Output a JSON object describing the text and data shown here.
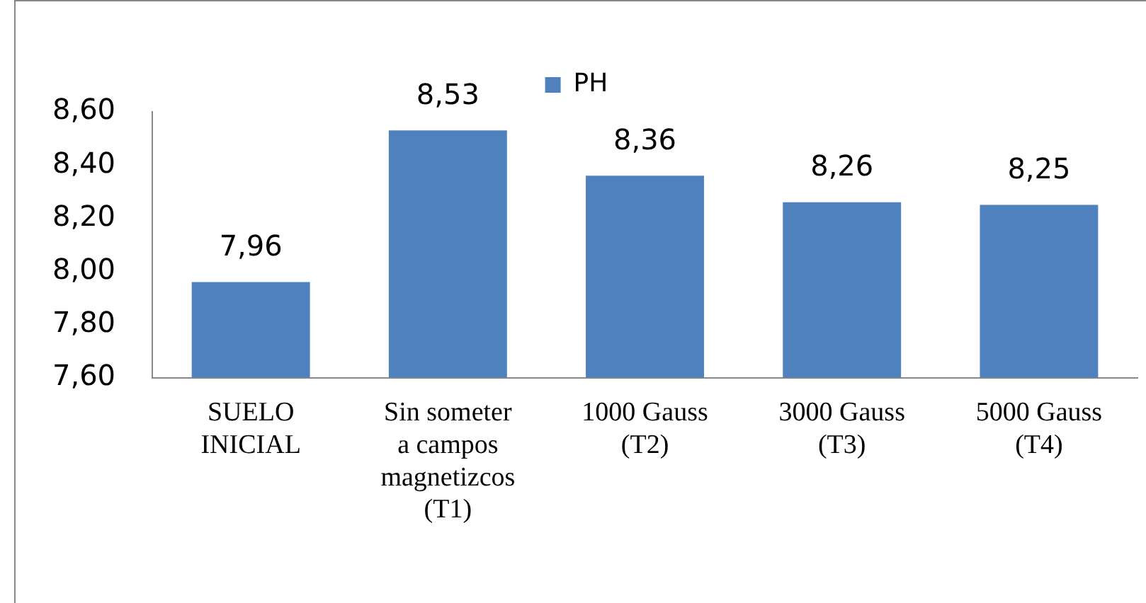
{
  "chart_data": {
    "type": "bar",
    "categories": [
      "SUELO INICIAL",
      "Sin someter a campos magnetizcos (T1)",
      "1000 Gauss (T2)",
      "3000 Gauss (T3)",
      "5000 Gauss (T4)"
    ],
    "series": [
      {
        "name": "PH",
        "color": "#4f81bd",
        "values": [
          7.96,
          8.53,
          8.36,
          8.26,
          8.25
        ],
        "value_labels": [
          "7,96",
          "8,53",
          "8,36",
          "8,26",
          "8,25"
        ]
      }
    ],
    "ylim": [
      7.6,
      8.6
    ],
    "yticks": [
      {
        "value": 7.6,
        "label": "7,60"
      },
      {
        "value": 7.8,
        "label": "7,80"
      },
      {
        "value": 8.0,
        "label": "8,00"
      },
      {
        "value": 8.2,
        "label": "8,20"
      },
      {
        "value": 8.4,
        "label": "8,40"
      },
      {
        "value": 8.6,
        "label": "8,60"
      }
    ],
    "grid": false,
    "legend": "top"
  }
}
